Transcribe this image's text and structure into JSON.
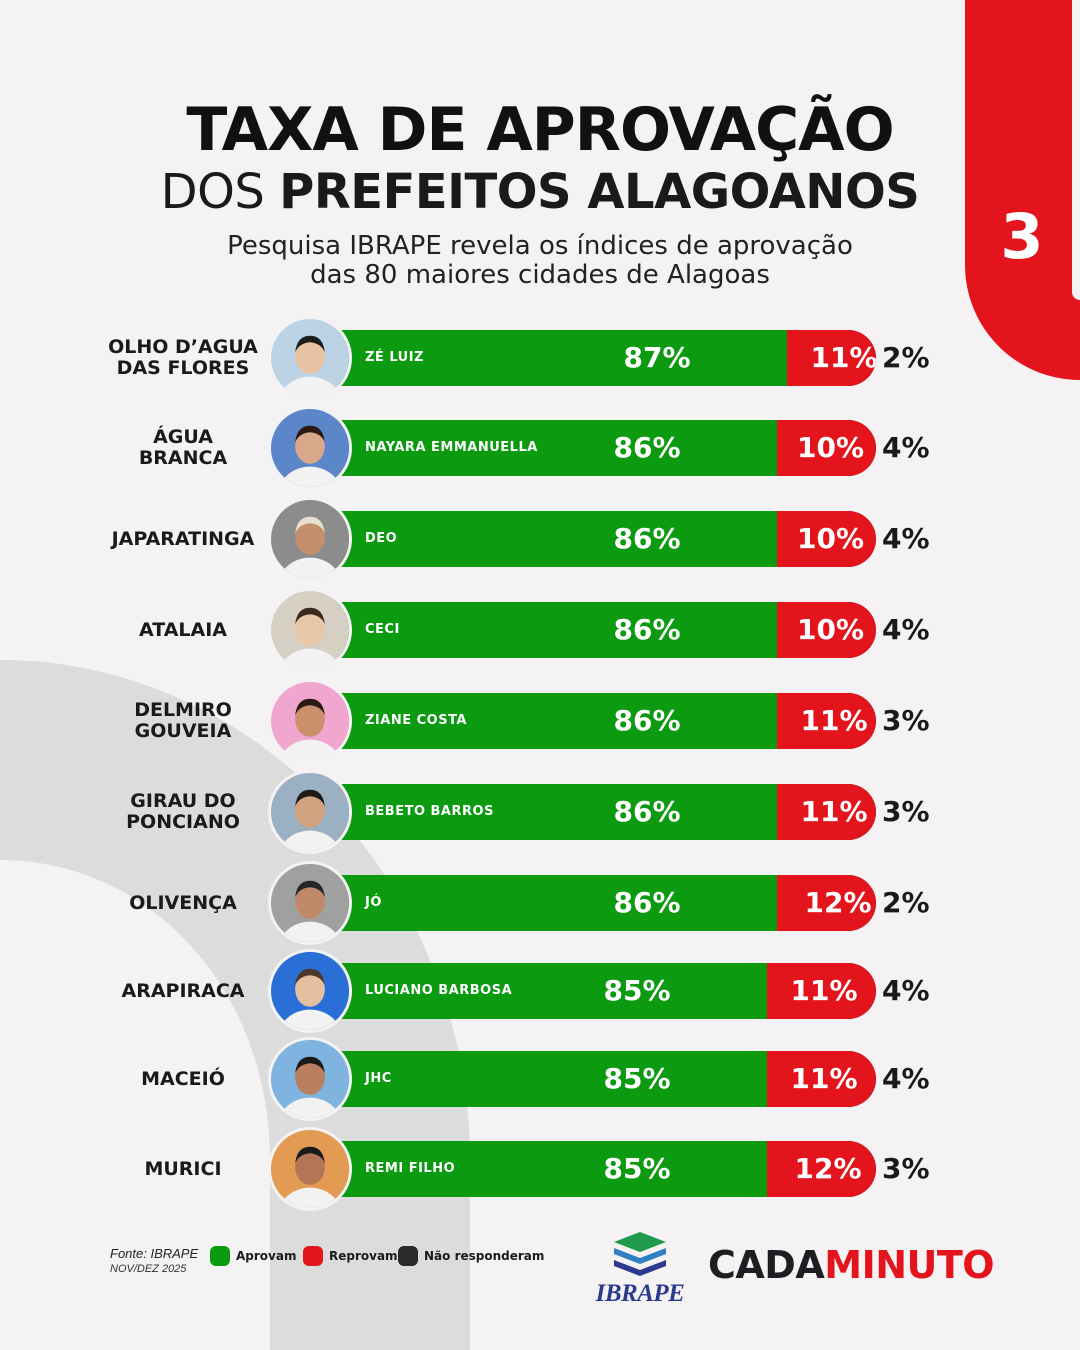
{
  "header": {
    "title_line1": "TAXA DE APROVAÇÃO",
    "title_line2_light": "DOS",
    "title_line2_bold": "PREFEITOS ALAGOANOS",
    "subtitle_line1": "Pesquisa IBRAPE revela os índices de aprovação",
    "subtitle_line2": "das 80 maiores cidades de Alagoas",
    "page_number": "3"
  },
  "colors": {
    "aprovam": "#0b9a10",
    "reprovam": "#e3141c",
    "nao_responderam": "#2b2b2b",
    "accent": "#e3141c"
  },
  "chart_data": {
    "type": "bar",
    "orientation": "horizontal",
    "stacked": true,
    "categories": [
      "OLHO D’AGUA\nDAS FLORES",
      "ÁGUA\nBRANCA",
      "JAPARATINGA",
      "ATALAIA",
      "DELMIRO\nGOUVEIA",
      "GIRAU DO\nPONCIANO",
      "OLIVENÇA",
      "ARAPIRACA",
      "MACEIÓ",
      "MURICI"
    ],
    "mayors": [
      "ZÉ LUIZ",
      "NAYARA EMMANUELLA",
      "DEO",
      "CECI",
      "ZIANE COSTA",
      "BEBETO BARROS",
      "JÓ",
      "LUCIANO BARBOSA",
      "JHC",
      "REMI FILHO"
    ],
    "series": [
      {
        "name": "Aprovam",
        "values": [
          87,
          86,
          86,
          86,
          86,
          86,
          86,
          85,
          85,
          85
        ]
      },
      {
        "name": "Reprovam",
        "values": [
          11,
          10,
          10,
          10,
          11,
          11,
          12,
          11,
          11,
          12
        ]
      },
      {
        "name": "Não responderam",
        "values": [
          2,
          4,
          4,
          4,
          3,
          3,
          2,
          4,
          4,
          3
        ]
      }
    ],
    "labels": {
      "aprovam": [
        "87%",
        "86%",
        "86%",
        "86%",
        "86%",
        "86%",
        "86%",
        "85%",
        "85%",
        "85%"
      ],
      "reprovam": [
        "11%",
        "10%",
        "10%",
        "10%",
        "11%",
        "11%",
        "12%",
        "11%",
        "11%",
        "12%"
      ],
      "nao_responderam": [
        "2%",
        "4%",
        "4%",
        "4%",
        "3%",
        "3%",
        "2%",
        "4%",
        "4%",
        "3%"
      ]
    },
    "legend": [
      "Aprovam",
      "Reprovam",
      "Não responderam"
    ],
    "legend_position": "bottom-left"
  },
  "footer": {
    "fonte": "Fonte: IBRAPE",
    "date": "NOV/DEZ 2025",
    "legend_aprovam": "Aprovam",
    "legend_reprovam": "Reprovam",
    "legend_nao": "Não responderam",
    "ibrape_logo": "IBRAPE",
    "brand_part1": "CADA",
    "brand_part2": "MINUTO"
  }
}
